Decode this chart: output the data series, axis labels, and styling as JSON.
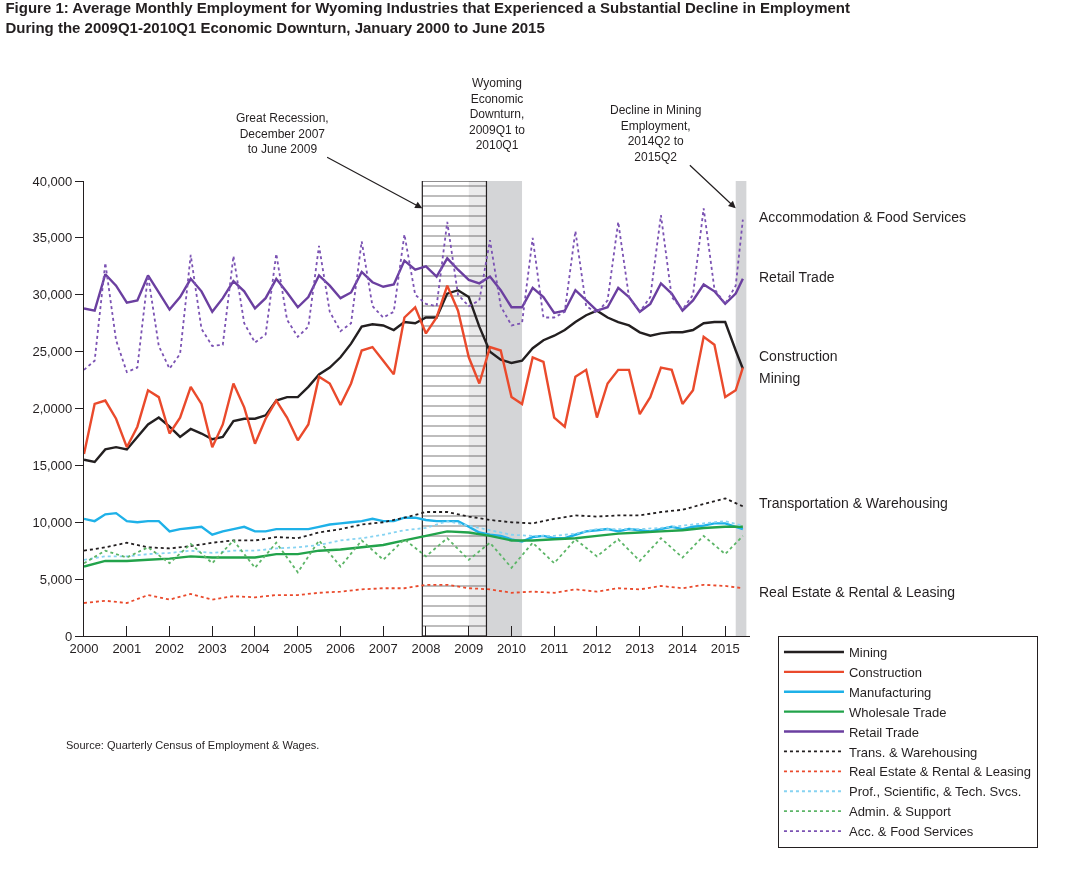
{
  "chart_data": {
    "type": "line",
    "title": "Figure 1: Average Monthly Employment for Wyoming Industries that Experienced a Substantial Decline in Employment\nDuring the 2009Q1-2010Q1 Economic Downturn, January 2000 to June 2015",
    "x": [
      "2000-01",
      "2000-04",
      "2000-07",
      "2000-10",
      "2001-01",
      "2001-04",
      "2001-07",
      "2001-10",
      "2002-01",
      "2002-04",
      "2002-07",
      "2002-10",
      "2003-01",
      "2003-04",
      "2003-07",
      "2003-10",
      "2004-01",
      "2004-04",
      "2004-07",
      "2004-10",
      "2005-01",
      "2005-04",
      "2005-07",
      "2005-10",
      "2006-01",
      "2006-04",
      "2006-07",
      "2006-10",
      "2007-01",
      "2007-04",
      "2007-07",
      "2007-10",
      "2008-01",
      "2008-04",
      "2008-07",
      "2008-10",
      "2009-01",
      "2009-04",
      "2009-07",
      "2009-10",
      "2010-01",
      "2010-04",
      "2010-07",
      "2010-10",
      "2011-01",
      "2011-04",
      "2011-07",
      "2011-10",
      "2012-01",
      "2012-04",
      "2012-07",
      "2012-10",
      "2013-01",
      "2013-04",
      "2013-07",
      "2013-10",
      "2014-01",
      "2014-04",
      "2014-07",
      "2014-10",
      "2015-01",
      "2015-04",
      "2015-06"
    ],
    "series": [
      {
        "name": "Mining",
        "color": "#231f20",
        "line_style": "solid",
        "values": [
          15500,
          15300,
          16400,
          16600,
          16400,
          17500,
          18600,
          19200,
          18400,
          17500,
          18200,
          17800,
          17300,
          17500,
          18900,
          19100,
          19100,
          19400,
          20700,
          21000,
          21000,
          21900,
          23000,
          23600,
          24500,
          25700,
          27200,
          27400,
          27300,
          26900,
          27600,
          27500,
          28000,
          28000,
          30100,
          30400,
          29800,
          27200,
          25000,
          24300,
          24000,
          24200,
          25300,
          26000,
          26400,
          26900,
          27600,
          28200,
          28600,
          28000,
          27600,
          27300,
          26700,
          26400,
          26600,
          26700,
          26700,
          26900,
          27500,
          27600,
          27600,
          25100,
          23500
        ]
      },
      {
        "name": "Construction",
        "color": "#ea4a2c",
        "line_style": "solid",
        "values": [
          16000,
          20400,
          20700,
          19100,
          16600,
          18400,
          21600,
          21000,
          17800,
          19200,
          21900,
          20400,
          16600,
          18600,
          22200,
          20100,
          16900,
          19100,
          20700,
          19200,
          17200,
          18600,
          22800,
          22200,
          20300,
          22200,
          25100,
          25400,
          24200,
          23000,
          28000,
          28900,
          26600,
          28000,
          30800,
          28600,
          24500,
          22200,
          25400,
          25100,
          21000,
          20400,
          24500,
          24100,
          19200,
          18400,
          22800,
          23400,
          19200,
          22200,
          23400,
          23400,
          19500,
          21000,
          23600,
          23400,
          20400,
          21600,
          26300,
          25600,
          21000,
          21600,
          23600
        ]
      },
      {
        "name": "Manufacturing",
        "color": "#1eb1e8",
        "line_style": "solid",
        "values": [
          10300,
          10100,
          10700,
          10800,
          10100,
          10000,
          10100,
          10100,
          9200,
          9400,
          9500,
          9600,
          8900,
          9200,
          9400,
          9600,
          9200,
          9200,
          9400,
          9400,
          9400,
          9400,
          9600,
          9800,
          9900,
          10000,
          10100,
          10300,
          10100,
          10100,
          10400,
          10400,
          10200,
          10100,
          10100,
          10100,
          9600,
          9100,
          8900,
          8800,
          8500,
          8300,
          8700,
          8800,
          8600,
          8600,
          8900,
          9200,
          9300,
          9400,
          9200,
          9400,
          9300,
          9200,
          9400,
          9600,
          9400,
          9600,
          9700,
          9900,
          9900,
          9600,
          9400
        ]
      },
      {
        "name": "Wholesale Trade",
        "color": "#22a34b",
        "line_style": "solid",
        "x": [
          "2000-01",
          "2000-07",
          "2001-01",
          "2001-07",
          "2002-01",
          "2002-07",
          "2003-01",
          "2003-07",
          "2004-01",
          "2004-07",
          "2005-01",
          "2005-07",
          "2006-01",
          "2006-07",
          "2007-01",
          "2007-07",
          "2008-01",
          "2008-07",
          "2009-01",
          "2009-07",
          "2010-01",
          "2010-07",
          "2011-01",
          "2011-07",
          "2012-01",
          "2012-07",
          "2013-01",
          "2013-07",
          "2014-01",
          "2014-07",
          "2015-01",
          "2015-06"
        ],
        "values": [
          6100,
          6600,
          6600,
          6700,
          6800,
          7000,
          6900,
          6900,
          6900,
          7200,
          7200,
          7500,
          7600,
          7800,
          8000,
          8400,
          8800,
          9200,
          9100,
          8800,
          8400,
          8400,
          8500,
          8600,
          8800,
          9000,
          9100,
          9200,
          9300,
          9500,
          9600,
          9600
        ]
      },
      {
        "name": "Retail Trade",
        "color": "#6b3fa0",
        "line_style": "solid",
        "values": [
          28800,
          28600,
          31800,
          30800,
          29300,
          29500,
          31700,
          30200,
          28700,
          29800,
          31400,
          30300,
          28500,
          29700,
          31200,
          30300,
          28800,
          29700,
          31400,
          30200,
          28900,
          29800,
          31700,
          30800,
          29700,
          30200,
          32000,
          31100,
          30700,
          30900,
          33000,
          32200,
          32500,
          31600,
          33200,
          32200,
          31300,
          31000,
          31600,
          30400,
          28900,
          28900,
          30600,
          29800,
          28400,
          28600,
          30400,
          29500,
          28600,
          28900,
          30600,
          29800,
          28500,
          29200,
          31000,
          30100,
          28600,
          29500,
          30900,
          30300,
          29200,
          30100,
          31400
        ]
      },
      {
        "name": "Trans. & Warehousing",
        "color": "#231f20",
        "line_style": "dotted",
        "x": [
          "2000-01",
          "2000-07",
          "2001-01",
          "2001-07",
          "2002-01",
          "2002-07",
          "2003-01",
          "2003-07",
          "2004-01",
          "2004-07",
          "2005-01",
          "2005-07",
          "2006-01",
          "2006-07",
          "2007-01",
          "2007-07",
          "2008-01",
          "2008-07",
          "2009-01",
          "2009-07",
          "2010-01",
          "2010-07",
          "2011-01",
          "2011-07",
          "2012-01",
          "2012-07",
          "2013-01",
          "2013-07",
          "2014-01",
          "2014-07",
          "2015-01",
          "2015-06"
        ],
        "values": [
          7500,
          7800,
          8200,
          7800,
          7700,
          7900,
          8200,
          8400,
          8400,
          8700,
          8600,
          9100,
          9400,
          9800,
          10000,
          10400,
          10900,
          10900,
          10500,
          10200,
          10000,
          9900,
          10300,
          10600,
          10500,
          10600,
          10600,
          10900,
          11100,
          11600,
          12100,
          11400
        ]
      },
      {
        "name": "Real Estate & Rental & Leasing",
        "color": "#ea4a2c",
        "line_style": "dotted",
        "x": [
          "2000-01",
          "2000-07",
          "2001-01",
          "2001-07",
          "2002-01",
          "2002-07",
          "2003-01",
          "2003-07",
          "2004-01",
          "2004-07",
          "2005-01",
          "2005-07",
          "2006-01",
          "2006-07",
          "2007-01",
          "2007-07",
          "2008-01",
          "2008-07",
          "2009-01",
          "2009-07",
          "2010-01",
          "2010-07",
          "2011-01",
          "2011-07",
          "2012-01",
          "2012-07",
          "2013-01",
          "2013-07",
          "2014-01",
          "2014-07",
          "2015-01",
          "2015-06"
        ],
        "values": [
          2900,
          3100,
          2900,
          3600,
          3200,
          3700,
          3200,
          3500,
          3400,
          3600,
          3600,
          3800,
          3900,
          4100,
          4200,
          4200,
          4500,
          4500,
          4200,
          4100,
          3800,
          3900,
          3800,
          4100,
          3900,
          4200,
          4100,
          4400,
          4200,
          4500,
          4400,
          4200
        ]
      },
      {
        "name": "Prof., Scientific, & Tech. Svcs.",
        "color": "#86d3f2",
        "line_style": "dotted",
        "x": [
          "2000-01",
          "2000-07",
          "2001-01",
          "2001-07",
          "2002-01",
          "2002-07",
          "2003-01",
          "2003-07",
          "2004-01",
          "2004-07",
          "2005-01",
          "2005-07",
          "2006-01",
          "2006-07",
          "2007-01",
          "2007-07",
          "2008-01",
          "2008-07",
          "2009-01",
          "2009-07",
          "2010-01",
          "2010-07",
          "2011-01",
          "2011-07",
          "2012-01",
          "2012-07",
          "2013-01",
          "2013-07",
          "2014-01",
          "2014-07",
          "2015-01",
          "2015-06"
        ],
        "values": [
          6700,
          7000,
          7000,
          7200,
          7300,
          7500,
          7300,
          7500,
          7500,
          7700,
          7800,
          8000,
          8400,
          8600,
          8900,
          9300,
          9500,
          10100,
          9700,
          9300,
          8900,
          8800,
          8800,
          9000,
          9400,
          9400,
          9400,
          9500,
          9700,
          9900,
          10100,
          9700
        ]
      },
      {
        "name": "Admin. & Support",
        "color": "#5cb567",
        "line_style": "dotted",
        "x": [
          "2000-01",
          "2000-07",
          "2001-01",
          "2001-07",
          "2002-01",
          "2002-07",
          "2003-01",
          "2003-07",
          "2004-01",
          "2004-07",
          "2005-01",
          "2005-07",
          "2006-01",
          "2006-07",
          "2007-01",
          "2007-07",
          "2008-01",
          "2008-07",
          "2009-01",
          "2009-07",
          "2010-01",
          "2010-07",
          "2011-01",
          "2011-07",
          "2012-01",
          "2012-07",
          "2013-01",
          "2013-07",
          "2014-01",
          "2014-07",
          "2015-01",
          "2015-06"
        ],
        "values": [
          6400,
          7500,
          6900,
          7800,
          6400,
          8100,
          6400,
          8400,
          6000,
          8200,
          5600,
          8400,
          6100,
          8400,
          6700,
          8500,
          7000,
          8600,
          6700,
          8200,
          6000,
          8200,
          6400,
          8500,
          7000,
          8500,
          6600,
          8600,
          6900,
          8800,
          7200,
          8800
        ]
      },
      {
        "name": "Acc. & Food Services",
        "color": "#7b52b3",
        "line_style": "dotted",
        "values": [
          23400,
          24200,
          32800,
          26000,
          23200,
          23600,
          31700,
          25500,
          23500,
          24800,
          33500,
          27000,
          25500,
          25600,
          33400,
          27500,
          25800,
          26500,
          33600,
          27800,
          26300,
          27200,
          34300,
          28500,
          26800,
          27500,
          34700,
          29000,
          28000,
          28500,
          35300,
          30000,
          29200,
          29000,
          36400,
          30000,
          29000,
          29500,
          34800,
          29000,
          27300,
          27500,
          35000,
          28000,
          28000,
          28500,
          35600,
          29000,
          28400,
          29500,
          36400,
          29800,
          28500,
          29800,
          37000,
          29800,
          28700,
          30000,
          37600,
          30500,
          29200,
          30800,
          36600
        ]
      }
    ],
    "xlim": [
      "2000-01",
      "2015-08"
    ],
    "xticks": [
      "2000",
      "2001",
      "2002",
      "2003",
      "2004",
      "2005",
      "2006",
      "2007",
      "2008",
      "2009",
      "2010",
      "2011",
      "2012",
      "2013",
      "2014",
      "2015"
    ],
    "ylim": [
      0,
      40000
    ],
    "yticks": [
      0,
      {
        "value": 5000,
        "label": "5,000"
      },
      {
        "value": 10000,
        "label": "10,000"
      },
      {
        "value": 15000,
        "label": "15,000"
      },
      {
        "value": 20000,
        "label": "2,0000"
      },
      {
        "value": 25000,
        "label": "25,000"
      },
      {
        "value": 30000,
        "label": "30,000"
      },
      {
        "value": 35000,
        "label": "35,000"
      },
      {
        "value": 40000,
        "label": "40,000"
      }
    ],
    "bands": [
      {
        "axis": "x",
        "from": "2009-01",
        "to": "2010-04",
        "label": "Wyoming\nEconomic\nDownturn,\n2009Q1 to\n2010Q1",
        "color": "#d4d5d7"
      },
      {
        "axis": "x",
        "from": "2007-12",
        "to": "2009-06",
        "label": "Great Recession,\nDecember 2007\nto June 2009",
        "color": "#231f20"
      },
      {
        "axis": "x",
        "from": "2015-04",
        "to": "2015-07",
        "label": "Decline in Mining\nEmployment,\n2014Q2 to\n2015Q2",
        "color": "#d4d5d7"
      }
    ],
    "annotations": [
      {
        "text": "Accommodation & Food Services",
        "x": "2015-06",
        "y": 36800
      },
      {
        "text": "Retail Trade",
        "x": "2015-06",
        "y": 31600
      },
      {
        "text": "Construction",
        "x": "2015-06",
        "y": 24600
      },
      {
        "text": "Mining",
        "x": "2015-06",
        "y": 22700
      },
      {
        "text": "Transportation & Warehousing",
        "x": "2015-06",
        "y": 11700
      },
      {
        "text": "Real Estate & Rental & Leasing",
        "x": "2015-06",
        "y": 3900
      },
      "Source: Quarterly Census of Employment & Wages."
    ],
    "grid": false,
    "legend": "bottom right",
    "marker": "none"
  }
}
